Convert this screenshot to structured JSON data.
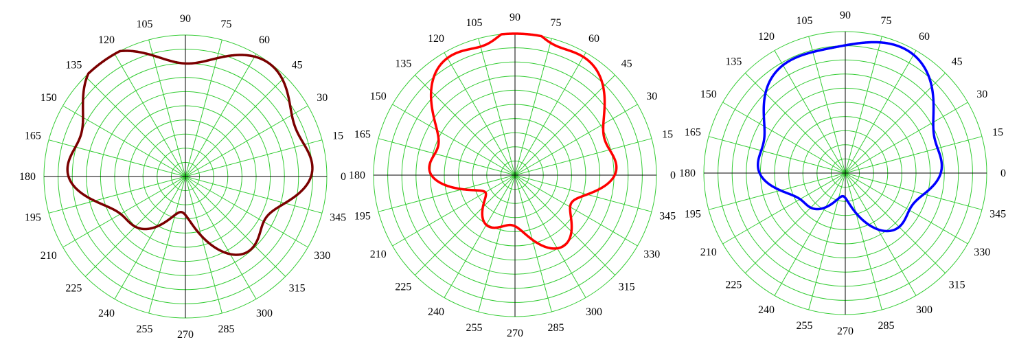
{
  "colors": {
    "grid": "#33cc33",
    "axis": "#000000",
    "background": "#ffffff"
  },
  "chart_data": [
    {
      "type": "polar-line",
      "title": "",
      "series_color": "#7a0000",
      "r_range": [
        0,
        1
      ],
      "rings": 10,
      "spokes_every_deg": 15,
      "angle_labels": [
        "0",
        "15",
        "30",
        "45",
        "60",
        "75",
        "90",
        "105",
        "120",
        "135",
        "150",
        "165",
        "180",
        "195",
        "210",
        "225",
        "240",
        "255",
        "270",
        "285",
        "300",
        "315",
        "330",
        "345"
      ],
      "lobes": [
        {
          "angle": 0,
          "length": 0.58,
          "width": 17
        },
        {
          "angle": 52,
          "length": 0.97,
          "width": 30
        },
        {
          "angle": 128,
          "length": 0.98,
          "width": 27
        },
        {
          "angle": 180,
          "length": 0.59,
          "width": 17
        },
        {
          "angle": 225,
          "length": 0.48,
          "width": 24
        },
        {
          "angle": 310,
          "length": 0.68,
          "width": 25
        }
      ]
    },
    {
      "type": "polar-line",
      "title": "",
      "series_color": "#ff0000",
      "r_range": [
        0,
        1
      ],
      "rings": 10,
      "spokes_every_deg": 15,
      "angle_labels": [
        "0",
        "15",
        "30",
        "45",
        "60",
        "75",
        "90",
        "105",
        "120",
        "135",
        "150",
        "165",
        "180",
        "195",
        "210",
        "225",
        "240",
        "255",
        "270",
        "285",
        "300",
        "315",
        "330",
        "345"
      ],
      "lobes": [
        {
          "angle": 0,
          "length": 0.5,
          "width": 16
        },
        {
          "angle": 56,
          "length": 0.92,
          "width": 30
        },
        {
          "angle": 88,
          "length": 0.18,
          "width": 8
        },
        {
          "angle": 124,
          "length": 0.87,
          "width": 27
        },
        {
          "angle": 180,
          "length": 0.48,
          "width": 16
        },
        {
          "angle": 240,
          "length": 0.39,
          "width": 22
        },
        {
          "angle": 305,
          "length": 0.6,
          "width": 24
        }
      ]
    },
    {
      "type": "polar-line",
      "title": "",
      "series_color": "#0000ff",
      "r_range": [
        0,
        1
      ],
      "rings": 10,
      "spokes_every_deg": 15,
      "angle_labels": [
        "0",
        "15",
        "30",
        "45",
        "60",
        "75",
        "90",
        "105",
        "120",
        "135",
        "150",
        "165",
        "180",
        "195",
        "210",
        "225",
        "240",
        "255",
        "270",
        "285",
        "300",
        "315",
        "330",
        "345"
      ],
      "lobes": [
        {
          "angle": 0,
          "length": 0.39,
          "width": 17
        },
        {
          "angle": 60,
          "length": 0.93,
          "width": 34
        },
        {
          "angle": 129,
          "length": 0.72,
          "width": 28
        },
        {
          "angle": 180,
          "length": 0.41,
          "width": 17
        },
        {
          "angle": 225,
          "length": 0.33,
          "width": 24
        },
        {
          "angle": 313,
          "length": 0.52,
          "width": 25
        }
      ]
    }
  ]
}
